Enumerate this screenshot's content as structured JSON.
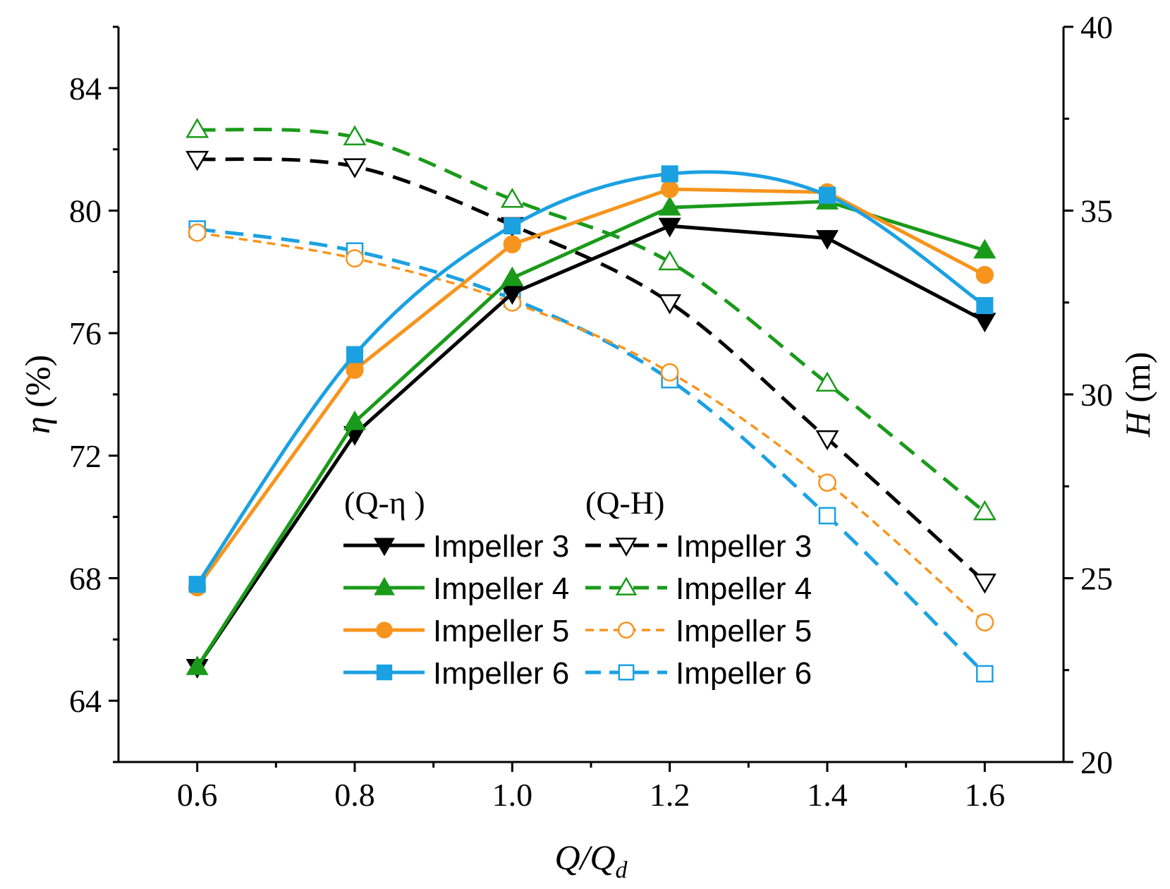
{
  "chart_data": {
    "type": "line",
    "x": [
      0.6,
      0.8,
      1.0,
      1.2,
      1.4,
      1.6
    ],
    "xlim": [
      0.5,
      1.7
    ],
    "xticks": [
      0.6,
      0.8,
      1.0,
      1.2,
      1.4,
      1.6
    ],
    "xtick_labels": [
      "0.6",
      "0.8",
      "1.0",
      "1.2",
      "1.4",
      "1.6"
    ],
    "ylim_left": [
      62,
      86
    ],
    "yticks_left": [
      64,
      68,
      72,
      76,
      80,
      84
    ],
    "ytick_labels_left": [
      "64",
      "68",
      "72",
      "76",
      "80",
      "84"
    ],
    "ylim_right": [
      20,
      40
    ],
    "yticks_right": [
      20,
      25,
      30,
      35,
      40
    ],
    "ytick_labels_right": [
      "20",
      "25",
      "30",
      "35",
      "40"
    ],
    "xlabel": {
      "main": "Q/Q",
      "sub": "d"
    },
    "ylabel_left": {
      "symbol": "η",
      "unit": " (%)"
    },
    "ylabel_right": {
      "symbol": "H",
      "unit": " (m)"
    },
    "legend": {
      "group_left_title": "(Q-η )",
      "group_right_title": "(Q-H)"
    },
    "series": [
      {
        "name": "Impeller 3",
        "group": "Q-η",
        "axis": "left",
        "color": "#000000",
        "marker": "triangle-down",
        "filled": true,
        "dash": "solid",
        "values": [
          65.1,
          72.7,
          77.3,
          79.5,
          79.1,
          76.4
        ]
      },
      {
        "name": "Impeller 4",
        "group": "Q-η",
        "axis": "left",
        "color": "#1a9a1a",
        "marker": "triangle-up",
        "filled": true,
        "dash": "solid",
        "values": [
          65.1,
          73.1,
          77.8,
          80.1,
          80.3,
          78.7
        ]
      },
      {
        "name": "Impeller 5",
        "group": "Q-η",
        "axis": "left",
        "color": "#f7941d",
        "marker": "circle",
        "filled": true,
        "dash": "solid",
        "values": [
          67.7,
          74.8,
          78.9,
          80.7,
          80.6,
          77.9
        ]
      },
      {
        "name": "Impeller 6",
        "group": "Q-η",
        "axis": "left",
        "color": "#1ba1e2",
        "marker": "square",
        "filled": true,
        "dash": "solid",
        "smooth": true,
        "values": [
          67.8,
          75.3,
          79.5,
          81.2,
          80.5,
          76.9
        ]
      },
      {
        "name": "Impeller 3",
        "group": "Q-H",
        "axis": "right",
        "color": "#000000",
        "marker": "triangle-down",
        "filled": false,
        "dash": "dashed",
        "values": [
          36.4,
          36.2,
          34.6,
          32.5,
          28.8,
          24.9
        ]
      },
      {
        "name": "Impeller 4",
        "group": "Q-H",
        "axis": "right",
        "color": "#1a9a1a",
        "marker": "triangle-up",
        "filled": false,
        "dash": "dashed",
        "values": [
          37.2,
          37.0,
          35.3,
          33.6,
          30.3,
          26.8
        ]
      },
      {
        "name": "Impeller 5",
        "group": "Q-H",
        "axis": "right",
        "color": "#f7941d",
        "marker": "circle",
        "filled": false,
        "dash": "short-dashed",
        "values": [
          34.4,
          33.7,
          32.5,
          30.6,
          27.6,
          23.8
        ]
      },
      {
        "name": "Impeller 6",
        "group": "Q-H",
        "axis": "right",
        "color": "#1ba1e2",
        "marker": "square",
        "filled": false,
        "dash": "dashed",
        "values": [
          34.5,
          33.9,
          32.6,
          30.4,
          26.7,
          22.4
        ]
      }
    ]
  }
}
